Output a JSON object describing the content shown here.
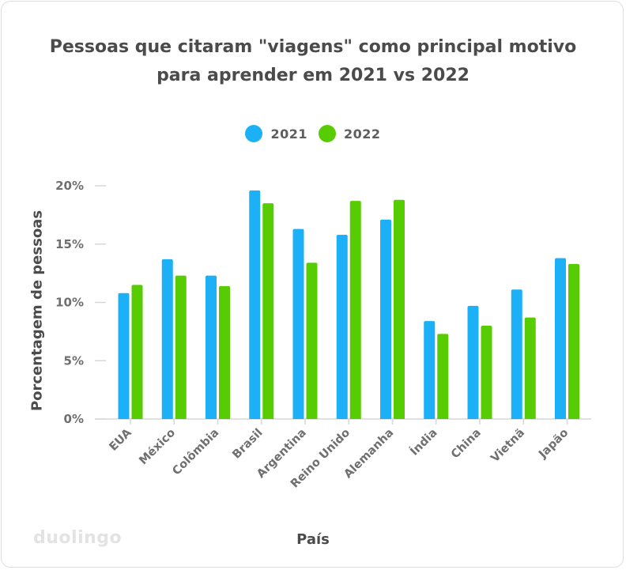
{
  "chart_data": {
    "type": "bar",
    "title_lines": [
      "Pessoas que citaram \"viagens\" como principal motivo",
      "para aprender em 2021 vs 2022"
    ],
    "xlabel": "País",
    "ylabel": "Porcentagem de pessoas",
    "ylim": [
      0,
      20
    ],
    "yticks": [
      0,
      5,
      10,
      15,
      20
    ],
    "ytick_labels": [
      "0%",
      "5%",
      "10%",
      "15%",
      "20%"
    ],
    "categories": [
      "EUA",
      "México",
      "Colômbia",
      "Brasil",
      "Argentina",
      "Reino Unido",
      "Alemanha",
      "Índia",
      "China",
      "Vietnã",
      "Japão"
    ],
    "series": [
      {
        "name": "2021",
        "color": "#1cb0f6",
        "values": [
          10.8,
          13.7,
          12.3,
          19.6,
          16.3,
          15.8,
          17.1,
          8.4,
          9.7,
          11.1,
          13.8
        ]
      },
      {
        "name": "2022",
        "color": "#58cc02",
        "values": [
          11.5,
          12.3,
          11.4,
          18.5,
          13.4,
          18.7,
          18.8,
          7.3,
          8.0,
          8.7,
          13.3
        ]
      }
    ],
    "legend_position": "top-center",
    "grid": false
  },
  "brand": {
    "logo_text": "duolingo"
  }
}
